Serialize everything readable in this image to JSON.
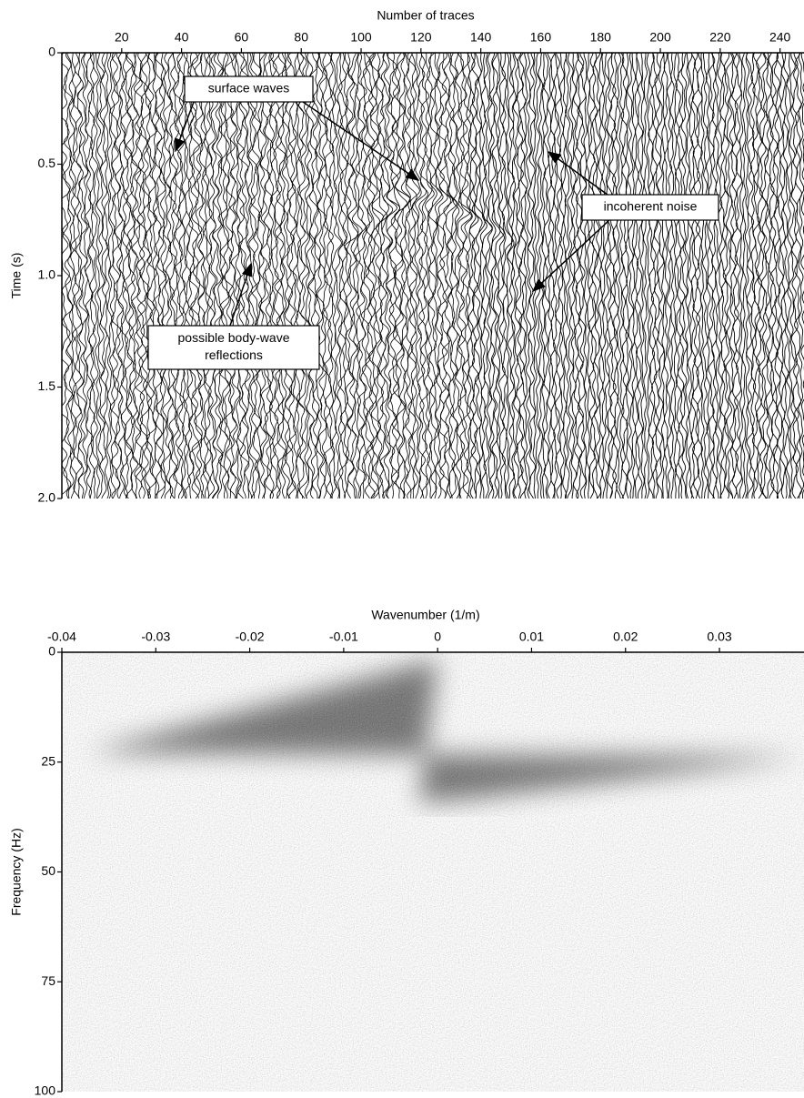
{
  "chart_data": [
    {
      "type": "wiggle",
      "xlabel": "Number of traces",
      "ylabel": "Time (s)",
      "xlim": [
        0,
        248
      ],
      "ylim": [
        0,
        2
      ],
      "xticks": [
        20,
        40,
        60,
        80,
        100,
        120,
        140,
        160,
        180,
        200,
        220,
        240
      ],
      "yticks": [
        0,
        0.5,
        {
          "value": 1,
          "label": "1.0"
        },
        1.5,
        {
          "value": 2,
          "label": "2.0"
        }
      ],
      "annotations": [
        {
          "lines": [
            "surface waves"
          ]
        },
        {
          "lines": [
            "incoherent noise"
          ]
        },
        {
          "lines": [
            "possible body-wave",
            "reflections"
          ]
        }
      ]
    },
    {
      "type": "heatmap",
      "xlabel": "Wavenumber (1/m)",
      "ylabel": "Frequency (Hz)",
      "xlim": [
        -0.04,
        0.039
      ],
      "ylim": [
        0,
        100
      ],
      "xticks": [
        -0.04,
        -0.03,
        -0.02,
        -0.01,
        0,
        0.01,
        0.02,
        0.03
      ],
      "yticks": [
        0,
        25,
        50,
        75,
        100
      ]
    }
  ]
}
